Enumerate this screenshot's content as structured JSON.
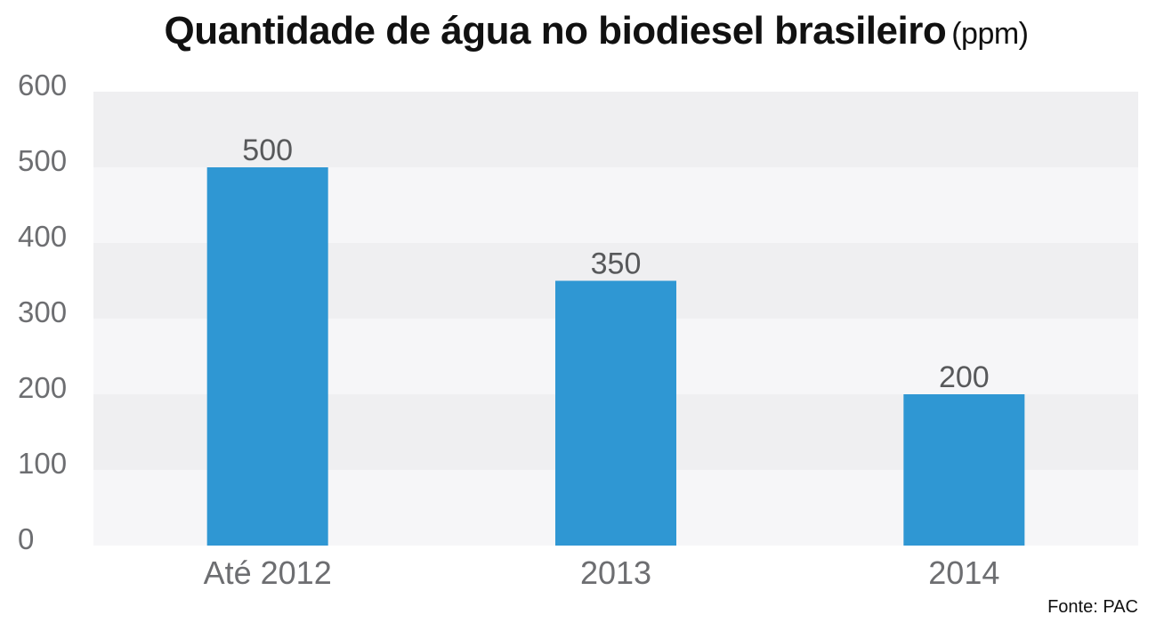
{
  "chart_data": {
    "type": "bar",
    "title": "Quantidade de água no biodiesel brasileiro",
    "title_unit": "(ppm)",
    "categories": [
      "Até 2012",
      "2013",
      "2014"
    ],
    "values": [
      500,
      350,
      200
    ],
    "data_labels": [
      "500",
      "350",
      "200"
    ],
    "ylim": [
      0,
      600
    ],
    "yticks": [
      0,
      100,
      200,
      300,
      400,
      500,
      600
    ],
    "xlabel": "",
    "ylabel": "",
    "grid": "alternating horizontal bands",
    "legend": "none",
    "bar_color": "#2f97d3",
    "band_colors": [
      "#f6f6f8",
      "#efeff1"
    ]
  },
  "source": "Fonte: PAC"
}
